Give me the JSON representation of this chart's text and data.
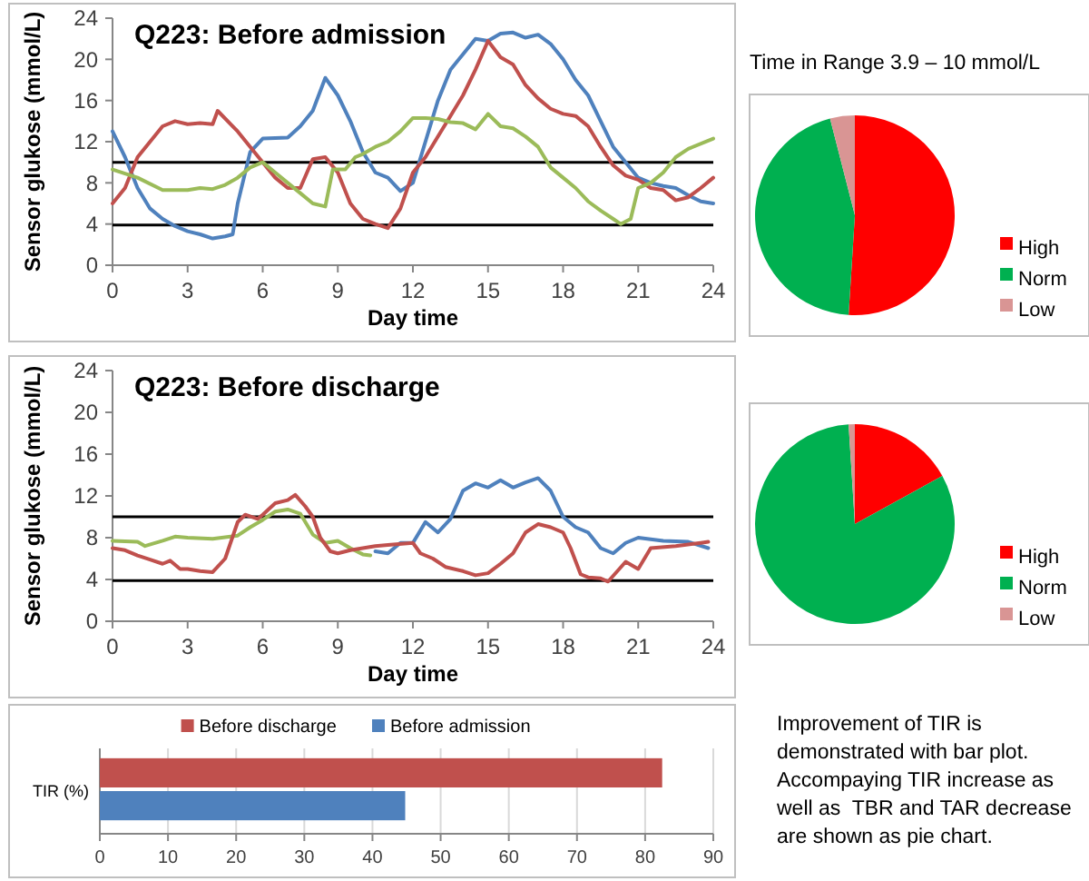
{
  "chart_data": [
    {
      "type": "line",
      "title": "Q223: Before admission",
      "xlabel": "Day time",
      "ylabel": "Sensor glukose (mmol/L)",
      "xlim": [
        0,
        24
      ],
      "xticks": [
        0,
        3,
        6,
        9,
        12,
        15,
        18,
        21,
        24
      ],
      "ylim": [
        0,
        24
      ],
      "yticks": [
        0,
        4,
        8,
        12,
        16,
        20,
        24
      ],
      "grid": false,
      "ref_lines": [
        {
          "axis": "y",
          "value": 10,
          "color": "#000000"
        },
        {
          "axis": "y",
          "value": 3.9,
          "color": "#000000"
        }
      ],
      "series": [
        {
          "color": "#4f81bd",
          "x": [
            0,
            0.5,
            1,
            1.5,
            2,
            2.5,
            3,
            3.5,
            4,
            4.5,
            4.8,
            5,
            5.5,
            6,
            7,
            7.5,
            8,
            8.5,
            9,
            9.5,
            10,
            10.5,
            11,
            11.5,
            12,
            12.5,
            13,
            13.5,
            14,
            14.5,
            15,
            15.5,
            16,
            16.5,
            17,
            17.5,
            18,
            18.5,
            19,
            19.5,
            20,
            20.5,
            21,
            21.5,
            22,
            22.5,
            23,
            23.5,
            24
          ],
          "values": [
            13,
            10.5,
            7.5,
            5.5,
            4.5,
            3.8,
            3.3,
            3,
            2.6,
            2.8,
            3,
            6,
            11,
            12.3,
            12.4,
            13.5,
            15,
            18.2,
            16.5,
            14,
            11,
            9,
            8.5,
            7.2,
            8,
            12,
            16,
            19,
            20.5,
            22,
            21.8,
            22.5,
            22.6,
            22.1,
            22.4,
            21.5,
            20,
            18,
            16.5,
            14,
            11.5,
            10,
            8.5,
            8,
            7.7,
            7.5,
            6.8,
            6.2,
            6
          ]
        },
        {
          "color": "#c0504d",
          "x": [
            0,
            0.5,
            1,
            1.5,
            2,
            2.5,
            3,
            3.5,
            4,
            4.2,
            5,
            5.5,
            6,
            6.5,
            7,
            7.5,
            8,
            8.5,
            9,
            9.5,
            10,
            10.5,
            11,
            11.5,
            12,
            12.5,
            13,
            13.5,
            14,
            14.5,
            15,
            15.5,
            16,
            16.5,
            17,
            17.5,
            18,
            18.5,
            19,
            19.5,
            20,
            20.5,
            21,
            21.5,
            22,
            22.5,
            23,
            23.5,
            24
          ],
          "values": [
            6,
            7.5,
            10.5,
            12,
            13.5,
            14,
            13.7,
            13.8,
            13.7,
            15,
            13,
            11.5,
            10,
            8.5,
            7.5,
            7.5,
            10.3,
            10.5,
            9,
            6,
            4.5,
            4,
            3.6,
            5.5,
            9,
            10.5,
            12.5,
            14.5,
            16.5,
            19,
            21.8,
            20.2,
            19.5,
            17.5,
            16.2,
            15.2,
            14.7,
            14.5,
            13.5,
            11.5,
            9.7,
            8.7,
            8.3,
            7.5,
            7.3,
            6.3,
            6.6,
            7.5,
            8.5
          ]
        },
        {
          "color": "#9bbb59",
          "x": [
            0,
            1,
            2,
            3,
            3.5,
            4,
            4.5,
            5,
            5.5,
            6,
            6.5,
            7,
            7.5,
            8,
            8.5,
            8.8,
            9.3,
            9.7,
            10,
            10.5,
            11,
            11.5,
            12,
            12.5,
            13,
            13.5,
            14,
            14.5,
            15,
            15.5,
            16,
            16.5,
            17,
            17.5,
            18,
            18.5,
            19,
            19.5,
            20,
            20.3,
            20.7,
            21,
            21.5,
            22,
            22.5,
            23,
            24
          ],
          "values": [
            9.3,
            8.5,
            7.3,
            7.3,
            7.5,
            7.4,
            7.8,
            8.5,
            9.5,
            10,
            9,
            8,
            7,
            6,
            5.7,
            9.3,
            9.3,
            10.5,
            10.8,
            11.5,
            12,
            13,
            14.3,
            14.3,
            14.2,
            13.9,
            13.8,
            13.2,
            14.7,
            13.5,
            13.3,
            12.5,
            11.5,
            9.5,
            8.5,
            7.5,
            6.2,
            5.3,
            4.5,
            4,
            4.5,
            7.5,
            8,
            9,
            10.5,
            11.3,
            12.3
          ]
        }
      ]
    },
    {
      "type": "pie",
      "title": "Time in Range 3.9 – 10 mmol/L",
      "categories": [
        "High",
        "Norm",
        "Low"
      ],
      "values": [
        51,
        45,
        4
      ],
      "colors": [
        "#ff0000",
        "#00b050",
        "#d99594"
      ],
      "legend": "right"
    },
    {
      "type": "line",
      "title": "Q223: Before discharge",
      "xlabel": "Day time",
      "ylabel": "Sensor glukose (mmol/L)",
      "xlim": [
        0,
        24
      ],
      "xticks": [
        0,
        3,
        6,
        9,
        12,
        15,
        18,
        21,
        24
      ],
      "ylim": [
        0,
        24
      ],
      "yticks": [
        0,
        4,
        8,
        12,
        16,
        20,
        24
      ],
      "grid": false,
      "ref_lines": [
        {
          "axis": "y",
          "value": 10,
          "color": "#000000"
        },
        {
          "axis": "y",
          "value": 3.9,
          "color": "#000000"
        }
      ],
      "series": [
        {
          "color": "#9bbb59",
          "x": [
            0,
            1,
            1.3,
            2,
            2.5,
            3,
            4,
            5,
            5.5,
            6,
            6.5,
            7,
            7.5,
            8,
            8.5,
            9,
            9.5,
            10,
            10.3
          ],
          "values": [
            7.7,
            7.6,
            7.2,
            7.7,
            8.1,
            8,
            7.9,
            8.2,
            9,
            9.7,
            10.5,
            10.7,
            10.3,
            8.3,
            7.5,
            7.7,
            7,
            6.4,
            6.3
          ]
        },
        {
          "color": "#4f81bd",
          "x": [
            10.5,
            11,
            11.5,
            12,
            12.5,
            13,
            13.5,
            14,
            14.5,
            15,
            15.5,
            16,
            16.5,
            17,
            17.5,
            18,
            18.5,
            19,
            19.5,
            20,
            20.5,
            21,
            22,
            23,
            23.8
          ],
          "values": [
            6.7,
            6.5,
            7.5,
            7.5,
            9.5,
            8.5,
            9.8,
            12.5,
            13.2,
            12.8,
            13.5,
            12.8,
            13.3,
            13.7,
            12.5,
            10,
            9,
            8.5,
            7,
            6.5,
            7.5,
            8,
            7.7,
            7.6,
            7
          ]
        },
        {
          "color": "#c0504d",
          "x": [
            0,
            0.5,
            1,
            1.5,
            2,
            2.3,
            2.7,
            3,
            3.5,
            4,
            4.5,
            5,
            5.3,
            5.8,
            6,
            6.5,
            7,
            7.3,
            7.7,
            8,
            8.3,
            8.7,
            9,
            9.5,
            10,
            10.5,
            11,
            12,
            12.3,
            12.8,
            13.3,
            14,
            14.5,
            15,
            15.5,
            16,
            16.5,
            17,
            17.5,
            18,
            18.3,
            18.7,
            19,
            19.5,
            19.8,
            20.5,
            21,
            21.5,
            22.5,
            23.5,
            23.8
          ],
          "values": [
            7,
            6.8,
            6.3,
            5.9,
            5.5,
            5.8,
            5,
            5,
            4.8,
            4.7,
            6,
            9.5,
            10.2,
            9.8,
            10.2,
            11.3,
            11.6,
            12.1,
            11,
            10,
            8,
            6.7,
            6.5,
            6.8,
            7,
            7.2,
            7.3,
            7.5,
            6.5,
            6,
            5.2,
            4.8,
            4.4,
            4.6,
            5.5,
            6.5,
            8.5,
            9.3,
            9,
            8.5,
            7,
            4.5,
            4.2,
            4.1,
            3.8,
            5.7,
            5,
            7,
            7.2,
            7.5,
            7.6
          ]
        }
      ]
    },
    {
      "type": "pie",
      "categories": [
        "High",
        "Norm",
        "Low"
      ],
      "values": [
        17,
        82,
        1
      ],
      "colors": [
        "#ff0000",
        "#00b050",
        "#d99594"
      ],
      "legend": "right"
    },
    {
      "type": "bar",
      "orientation": "horizontal",
      "categories": [
        "TIR (%)"
      ],
      "xlim": [
        0,
        90
      ],
      "xticks": [
        0,
        10,
        20,
        30,
        40,
        50,
        60,
        70,
        80,
        90
      ],
      "grid": "x",
      "legend": "top",
      "series": [
        {
          "name": "Before discharge",
          "color": "#c0504d",
          "values": [
            82.5
          ]
        },
        {
          "name": "Before admission",
          "color": "#4f81bd",
          "values": [
            44.8
          ]
        }
      ]
    },
    {
      "type": "other",
      "annotations": [
        "Improvement of TIR is demonstrated with bar plot. Accompaying TIR increase as well as  TBR and TAR decrease are shown as pie chart."
      ]
    }
  ]
}
